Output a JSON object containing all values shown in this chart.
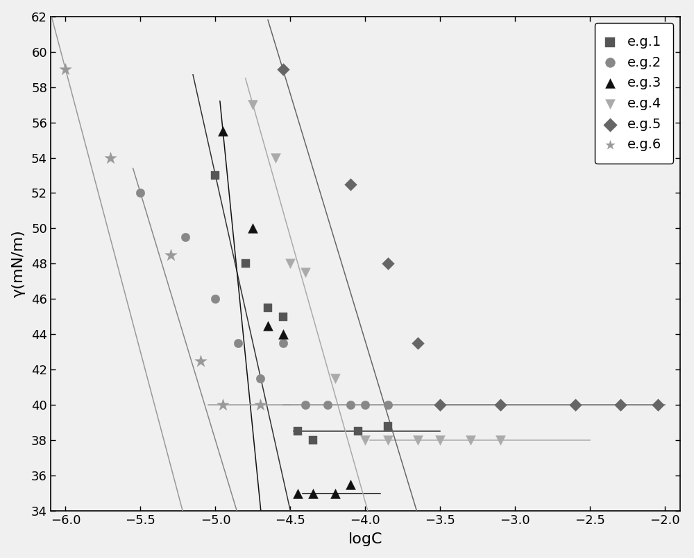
{
  "series": [
    {
      "label": "e.g.1",
      "marker": "s",
      "color": "#555555",
      "markersize": 9,
      "data_x": [
        -5.0,
        -4.8,
        -4.65,
        -4.55,
        -4.45,
        -4.35,
        -4.05,
        -3.85
      ],
      "data_y": [
        53.0,
        48.0,
        45.5,
        45.0,
        38.5,
        38.0,
        38.5,
        38.8
      ],
      "steep_x1": -5.15,
      "steep_x2": -4.48,
      "slope": -38.0,
      "ref_x": -5.0,
      "ref_y": 53.0,
      "plateau_x1": -4.48,
      "plateau_x2": -3.5,
      "plateau_y": 38.5,
      "line_color": "#333333"
    },
    {
      "label": "e.g.2",
      "marker": "o",
      "color": "#888888",
      "markersize": 9,
      "data_x": [
        -5.5,
        -5.2,
        -5.0,
        -4.85,
        -4.7,
        -4.55,
        -4.4,
        -4.25,
        -4.1,
        -4.0,
        -3.85
      ],
      "data_y": [
        52.0,
        49.5,
        46.0,
        43.5,
        41.5,
        43.5,
        40.0,
        40.0,
        40.0,
        40.0,
        40.0
      ],
      "steep_x1": -5.55,
      "steep_x2": -4.55,
      "slope": -28.0,
      "ref_x": -5.5,
      "ref_y": 52.0,
      "plateau_x1": -4.55,
      "plateau_x2": -3.5,
      "plateau_y": 40.0,
      "line_color": "#888888"
    },
    {
      "label": "e.g.3",
      "marker": "^",
      "color": "#111111",
      "markersize": 10,
      "data_x": [
        -4.95,
        -4.75,
        -4.65,
        -4.55,
        -4.45,
        -4.35,
        -4.2,
        -4.1
      ],
      "data_y": [
        55.5,
        50.0,
        44.5,
        44.0,
        35.0,
        35.0,
        35.0,
        35.5
      ],
      "steep_x1": -4.97,
      "steep_x2": -4.42,
      "slope": -85.0,
      "ref_x": -4.95,
      "ref_y": 55.5,
      "plateau_x1": -4.42,
      "plateau_x2": -3.9,
      "plateau_y": 35.0,
      "line_color": "#111111"
    },
    {
      "label": "e.g.4",
      "marker": "v",
      "color": "#aaaaaa",
      "markersize": 10,
      "data_x": [
        -4.75,
        -4.6,
        -4.5,
        -4.4,
        -4.2,
        -4.0,
        -3.85,
        -3.65,
        -3.5,
        -3.3,
        -3.1
      ],
      "data_y": [
        57.0,
        54.0,
        48.0,
        47.5,
        41.5,
        38.0,
        38.0,
        38.0,
        38.0,
        38.0,
        38.0
      ],
      "steep_x1": -4.8,
      "steep_x2": -3.97,
      "slope": -30.0,
      "ref_x": -4.75,
      "ref_y": 57.0,
      "plateau_x1": -3.97,
      "plateau_x2": -2.5,
      "plateau_y": 38.0,
      "line_color": "#aaaaaa"
    },
    {
      "label": "e.g.5",
      "marker": "D",
      "color": "#666666",
      "markersize": 9,
      "data_x": [
        -4.55,
        -4.1,
        -3.85,
        -3.65,
        -3.5,
        -3.1,
        -2.6,
        -2.3,
        -2.05
      ],
      "data_y": [
        59.0,
        52.5,
        48.0,
        43.5,
        40.0,
        40.0,
        40.0,
        40.0,
        40.0
      ],
      "steep_x1": -4.65,
      "steep_x2": -3.5,
      "slope": -28.0,
      "ref_x": -4.55,
      "ref_y": 59.0,
      "plateau_x1": -3.5,
      "plateau_x2": -2.0,
      "plateau_y": 40.0,
      "line_color": "#666666"
    },
    {
      "label": "e.g.6",
      "marker": "*",
      "color": "#999999",
      "markersize": 13,
      "data_x": [
        -6.0,
        -5.7,
        -5.3,
        -5.1,
        -4.95,
        -4.7
      ],
      "data_y": [
        59.0,
        54.0,
        48.5,
        42.5,
        40.0,
        40.0
      ],
      "steep_x1": -6.1,
      "steep_x2": -5.05,
      "slope": -32.0,
      "ref_x": -6.0,
      "ref_y": 59.0,
      "plateau_x1": -5.05,
      "plateau_x2": -4.5,
      "plateau_y": 40.0,
      "line_color": "#999999"
    }
  ],
  "xlim": [
    -6.1,
    -1.9
  ],
  "ylim": [
    34,
    62
  ],
  "xlabel": "logC",
  "ylabel": "γ(mN/m)",
  "xticks": [
    -6.0,
    -5.5,
    -5.0,
    -4.5,
    -4.0,
    -3.5,
    -3.0,
    -2.5,
    -2.0
  ],
  "yticks": [
    34,
    36,
    38,
    40,
    42,
    44,
    46,
    48,
    50,
    52,
    54,
    56,
    58,
    60,
    62
  ],
  "bg_color": "#f0f0f0",
  "plot_bg": "#f5f5f5"
}
